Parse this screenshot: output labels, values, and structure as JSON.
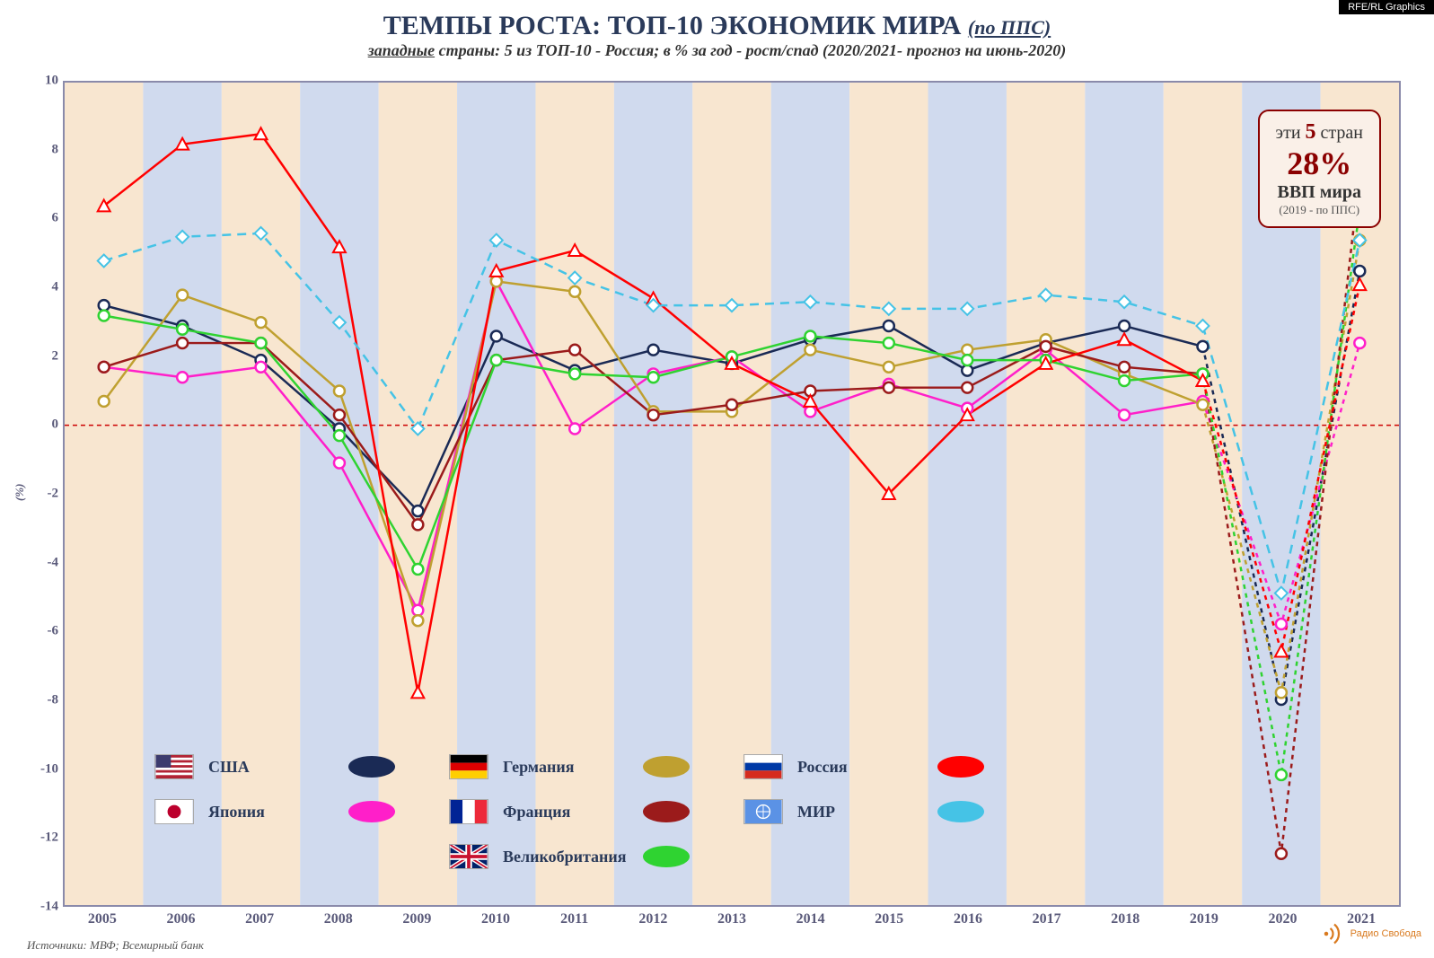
{
  "watermark": "RFE/RL Graphics",
  "title_main": "ТЕМПЫ РОСТА: ТОП-10 ЭКОНОМИК МИРА",
  "title_suffix": "(по ППС)",
  "subtitle_left": "западные",
  "subtitle_rest": " страны: 5 из ТОП-10 - Россия; в % за год - рост/спад (2020/2021- прогноз на июнь-2020)",
  "ylabel": "(%)",
  "source": "Источники: МВФ; Всемирный банк",
  "logo_text": "Радио Свобода",
  "chart": {
    "type": "line",
    "ylim": [
      -14,
      10
    ],
    "ytick_step": 2,
    "years": [
      2005,
      2006,
      2007,
      2008,
      2009,
      2010,
      2011,
      2012,
      2013,
      2014,
      2015,
      2016,
      2017,
      2018,
      2019,
      2020,
      2021
    ],
    "band_colors": [
      "#f8e6d0",
      "#d0daee"
    ],
    "border_color": "#8a8aaa",
    "zero_line_color": "#cc0000",
    "forecast_split_index": 14,
    "series": [
      {
        "key": "usa",
        "label": "США",
        "color": "#1a2a55",
        "marker": "circle",
        "dash": false,
        "flag": "usa",
        "values": [
          3.5,
          2.9,
          1.9,
          -0.1,
          -2.5,
          2.6,
          1.6,
          2.2,
          1.8,
          2.5,
          2.9,
          1.6,
          2.4,
          2.9,
          2.3,
          -8.0,
          4.5
        ]
      },
      {
        "key": "japan",
        "label": "Япония",
        "color": "#ff1fc9",
        "marker": "circle",
        "dash": false,
        "flag": "japan",
        "values": [
          1.7,
          1.4,
          1.7,
          -1.1,
          -5.4,
          4.2,
          -0.1,
          1.5,
          2.0,
          0.4,
          1.2,
          0.5,
          2.2,
          0.3,
          0.7,
          -5.8,
          2.4
        ]
      },
      {
        "key": "germany",
        "label": "Германия",
        "color": "#bfa030",
        "marker": "circle",
        "dash": false,
        "flag": "germany",
        "values": [
          0.7,
          3.8,
          3.0,
          1.0,
          -5.7,
          4.2,
          3.9,
          0.4,
          0.4,
          2.2,
          1.7,
          2.2,
          2.5,
          1.5,
          0.6,
          -7.8,
          5.4
        ]
      },
      {
        "key": "france",
        "label": "Франция",
        "color": "#9b1b1b",
        "marker": "circle",
        "dash": false,
        "flag": "france",
        "values": [
          1.7,
          2.4,
          2.4,
          0.3,
          -2.9,
          1.9,
          2.2,
          0.3,
          0.6,
          1.0,
          1.1,
          1.1,
          2.3,
          1.7,
          1.5,
          -12.5,
          7.3
        ]
      },
      {
        "key": "uk",
        "label": "Великобритания",
        "color": "#2fd331",
        "marker": "circle",
        "dash": false,
        "flag": "uk",
        "values": [
          3.2,
          2.8,
          2.4,
          -0.3,
          -4.2,
          1.9,
          1.5,
          1.4,
          2.0,
          2.6,
          2.4,
          1.9,
          1.9,
          1.3,
          1.5,
          -10.2,
          6.3
        ]
      },
      {
        "key": "russia",
        "label": "Россия",
        "color": "#ff0000",
        "marker": "triangle",
        "dash": false,
        "flag": "russia",
        "values": [
          6.4,
          8.2,
          8.5,
          5.2,
          -7.8,
          4.5,
          5.1,
          3.7,
          1.8,
          0.7,
          -2.0,
          0.3,
          1.8,
          2.5,
          1.3,
          -6.6,
          4.1
        ]
      },
      {
        "key": "world",
        "label": "МИР",
        "color": "#45c3e6",
        "marker": "diamond",
        "dash": true,
        "flag": "un",
        "values": [
          4.8,
          5.5,
          5.6,
          3.0,
          -0.1,
          5.4,
          4.3,
          3.5,
          3.5,
          3.6,
          3.4,
          3.4,
          3.8,
          3.6,
          2.9,
          -4.9,
          5.4
        ]
      }
    ]
  },
  "callout": {
    "line1_pre": "эти ",
    "line1_num": "5",
    "line1_post": " стран",
    "line2": "28%",
    "line3": "ВВП мира",
    "line4": "(2019 - по ППС)"
  },
  "legend_layout": [
    [
      "usa",
      "japan"
    ],
    [
      "germany",
      "france",
      "uk"
    ],
    [
      "russia",
      "world"
    ]
  ]
}
